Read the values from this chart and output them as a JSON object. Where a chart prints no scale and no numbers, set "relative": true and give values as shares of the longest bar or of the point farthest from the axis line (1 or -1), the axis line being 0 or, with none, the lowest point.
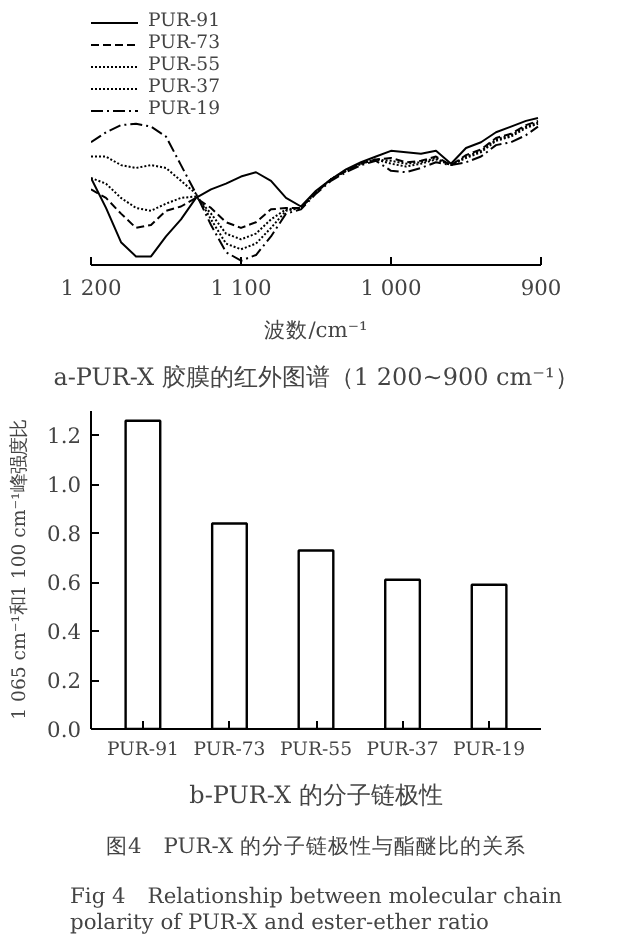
{
  "chart_data": [
    {
      "type": "line",
      "relative": true,
      "title": "a-PUR-X 胶膜的红外图谱（1 200~900 cm⁻¹）",
      "xlabel": "波数/cm⁻¹",
      "legend": "top left",
      "grid": false,
      "tick_labels": "x",
      "x": [
        1200,
        1190,
        1180,
        1170,
        1160,
        1150,
        1140,
        1130,
        1120,
        1110,
        1100,
        1090,
        1080,
        1070,
        1060,
        1050,
        1040,
        1030,
        1020,
        1010,
        1000,
        990,
        980,
        970,
        960,
        950,
        940,
        930,
        920,
        910,
        902
      ],
      "xlim": [
        1200,
        900
      ],
      "xticks": [
        {
          "value": 1200,
          "label": "1 200"
        },
        {
          "value": 1100,
          "label": "1 100"
        },
        {
          "value": 1000,
          "label": "1 000"
        },
        900
      ],
      "series": [
        {
          "name": "PUR-91",
          "color": "#000000",
          "line_style": "solid",
          "values": [
            0.58,
            0.37,
            0.13,
            0.03,
            0.03,
            0.17,
            0.29,
            0.44,
            0.5,
            0.54,
            0.59,
            0.62,
            0.56,
            0.44,
            0.38,
            0.49,
            0.57,
            0.64,
            0.69,
            0.73,
            0.77,
            0.76,
            0.75,
            0.77,
            0.68,
            0.79,
            0.83,
            0.9,
            0.94,
            0.98,
            1.0
          ]
        },
        {
          "name": "PUR-73",
          "color": "#000000",
          "line_style": "dashed",
          "values": [
            0.5,
            0.44,
            0.33,
            0.23,
            0.25,
            0.35,
            0.38,
            0.44,
            0.37,
            0.27,
            0.23,
            0.27,
            0.36,
            0.37,
            0.37,
            0.48,
            0.57,
            0.63,
            0.68,
            0.71,
            0.72,
            0.69,
            0.7,
            0.73,
            0.67,
            0.74,
            0.78,
            0.86,
            0.89,
            0.95,
            0.98
          ]
        },
        {
          "name": "PUR-55",
          "color": "#000000",
          "line_style": "dotted",
          "values": [
            0.58,
            0.54,
            0.44,
            0.37,
            0.35,
            0.4,
            0.44,
            0.45,
            0.33,
            0.19,
            0.15,
            0.19,
            0.29,
            0.36,
            0.37,
            0.48,
            0.57,
            0.63,
            0.68,
            0.71,
            0.7,
            0.68,
            0.69,
            0.72,
            0.67,
            0.73,
            0.77,
            0.85,
            0.88,
            0.94,
            0.97
          ]
        },
        {
          "name": "PUR-37",
          "color": "#000000",
          "line_style": "dotted",
          "values": [
            0.73,
            0.73,
            0.67,
            0.65,
            0.67,
            0.65,
            0.56,
            0.47,
            0.29,
            0.12,
            0.08,
            0.12,
            0.23,
            0.35,
            0.37,
            0.48,
            0.57,
            0.63,
            0.68,
            0.71,
            0.68,
            0.66,
            0.68,
            0.71,
            0.67,
            0.72,
            0.76,
            0.84,
            0.87,
            0.93,
            0.96
          ]
        },
        {
          "name": "PUR-19",
          "color": "#000000",
          "line_style": "dashdot",
          "values": [
            0.83,
            0.9,
            0.95,
            0.96,
            0.94,
            0.87,
            0.67,
            0.47,
            0.25,
            0.06,
            0.0,
            0.04,
            0.17,
            0.33,
            0.36,
            0.47,
            0.56,
            0.62,
            0.67,
            0.7,
            0.63,
            0.62,
            0.65,
            0.69,
            0.67,
            0.69,
            0.73,
            0.81,
            0.83,
            0.88,
            0.94
          ]
        }
      ]
    },
    {
      "type": "bar",
      "title": "b-PUR-X 的分子链极性",
      "ylabel": "1 065 cm⁻¹和1 100 cm⁻¹峰强度比",
      "grid": false,
      "categories": [
        "PUR-91",
        "PUR-73",
        "PUR-55",
        "PUR-37",
        "PUR-19"
      ],
      "values": [
        1.26,
        0.84,
        0.73,
        0.61,
        0.59
      ],
      "color": "#ffffff",
      "ylim": [
        0,
        1.3
      ],
      "yticks": [
        {
          "value": 0,
          "label": "0.0"
        },
        0.2,
        0.4,
        0.6,
        0.8,
        {
          "value": 1,
          "label": "1.0"
        },
        1.2
      ],
      "annotations": [
        "图4　PUR-X 的分子链极性与酯醚比的关系",
        "Fig 4　Relationship between molecular chain polarity of PUR-X and ester-ether ratio"
      ]
    }
  ]
}
